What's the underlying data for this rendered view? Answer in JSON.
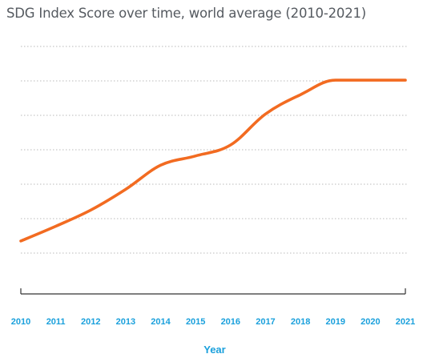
{
  "chart_data": {
    "type": "line",
    "title": "SDG Index Score over time, world average (2010-2021)",
    "xlabel": "Year",
    "ylabel": "",
    "x": [
      2010,
      2011,
      2012,
      2013,
      2014,
      2015,
      2016,
      2017,
      2018,
      2019,
      2020,
      2021
    ],
    "categories": [
      "2010",
      "2011",
      "2012",
      "2013",
      "2014",
      "2015",
      "2016",
      "2017",
      "2018",
      "2019",
      "2020",
      "2021"
    ],
    "series": [
      {
        "values": [
          1.35,
          1.78,
          2.25,
          2.85,
          3.55,
          3.82,
          4.14,
          5.04,
          5.6,
          6.02,
          6.02,
          6.02
        ]
      }
    ],
    "ylim": [
      0,
      7
    ],
    "y_ticks_visible": false,
    "grid": "horizontal dotted",
    "legend": "none",
    "colors": {
      "line": "#f26b21",
      "grid": "#b9b9b9",
      "axis": "#333333",
      "tick_label": "#1aa0dc",
      "title": "#555a60"
    }
  }
}
